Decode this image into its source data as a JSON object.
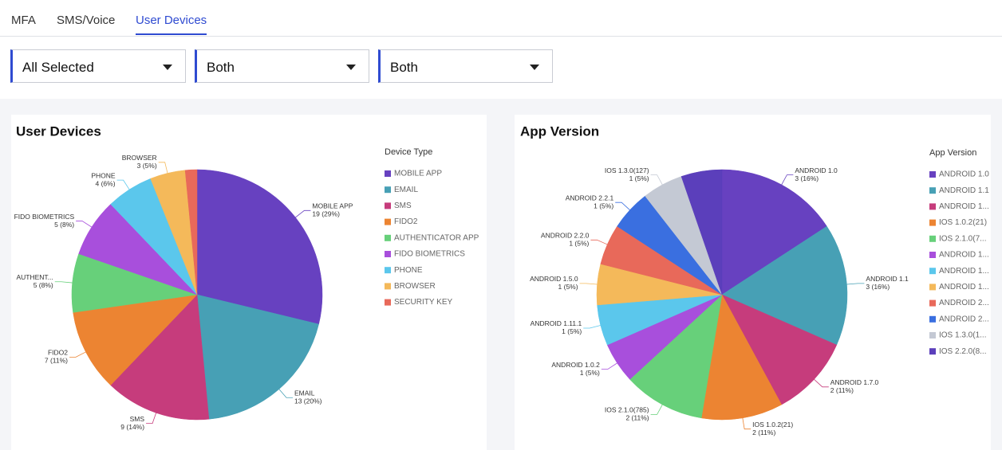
{
  "tabs": [
    "MFA",
    "SMS/Voice",
    "User Devices"
  ],
  "filters": [
    "All Selected",
    "Both",
    "Both"
  ],
  "chart_data": [
    {
      "type": "pie",
      "title": "User Devices",
      "legend_title": "Device Type",
      "categories": [
        "MOBILE APP",
        "EMAIL",
        "SMS",
        "FIDO2",
        "AUTHENTICATOR APP",
        "FIDO BIOMETRICS",
        "PHONE",
        "BROWSER",
        "SECURITY KEY"
      ],
      "slice_labels": [
        "MOBILE APP",
        "EMAIL",
        "SMS",
        "FIDO2",
        "AUTHENT...",
        "FIDO BIOMETRICS",
        "PHONE",
        "BROWSER",
        null
      ],
      "values": [
        19,
        13,
        9,
        7,
        5,
        5,
        4,
        3,
        1
      ],
      "value_labels": [
        "19 (29%)",
        "13 (20%)",
        "9 (14%)",
        "7 (11%)",
        "5 (8%)",
        "5 (8%)",
        "4 (6%)",
        "3 (5%)",
        null
      ],
      "colors": [
        "#6741c0",
        "#47a0b5",
        "#c63c7c",
        "#ec8432",
        "#67d07a",
        "#a84fdc",
        "#5bc7ec",
        "#f4b95a",
        "#e8695a"
      ]
    },
    {
      "type": "pie",
      "title": "App Version",
      "legend_title": "App Version",
      "categories": [
        "ANDROID 1.0",
        "ANDROID 1.1",
        "ANDROID 1...",
        "IOS 1.0.2(21)",
        "IOS 2.1.0(7...",
        "ANDROID 1...",
        "ANDROID 1...",
        "ANDROID 1...",
        "ANDROID 2...",
        "ANDROID 2...",
        "IOS 1.3.0(1...",
        "IOS 2.2.0(8..."
      ],
      "slice_labels": [
        "ANDROID 1.0",
        "ANDROID 1.1",
        "ANDROID 1.7.0",
        "IOS 1.0.2(21)",
        "IOS 2.1.0(785)",
        "ANDROID 1.0.2",
        "ANDROID 1.11.1",
        "ANDROID 1.5.0",
        "ANDROID 2.2.0",
        "ANDROID 2.2.1",
        "IOS 1.3.0(127)",
        null
      ],
      "values": [
        3,
        3,
        2,
        2,
        2,
        1,
        1,
        1,
        1,
        1,
        1,
        1
      ],
      "value_labels": [
        "3 (16%)",
        "3 (16%)",
        "2 (11%)",
        "2 (11%)",
        "2 (11%)",
        "1 (5%)",
        "1 (5%)",
        "1 (5%)",
        "1 (5%)",
        "1 (5%)",
        "1 (5%)",
        null
      ],
      "colors": [
        "#6741c0",
        "#47a0b5",
        "#c63c7c",
        "#ec8432",
        "#67d07a",
        "#a84fdc",
        "#5bc7ec",
        "#f4b95a",
        "#e8695a",
        "#3a6fe0",
        "#c4c9d4",
        "#5b3fbb"
      ]
    }
  ]
}
